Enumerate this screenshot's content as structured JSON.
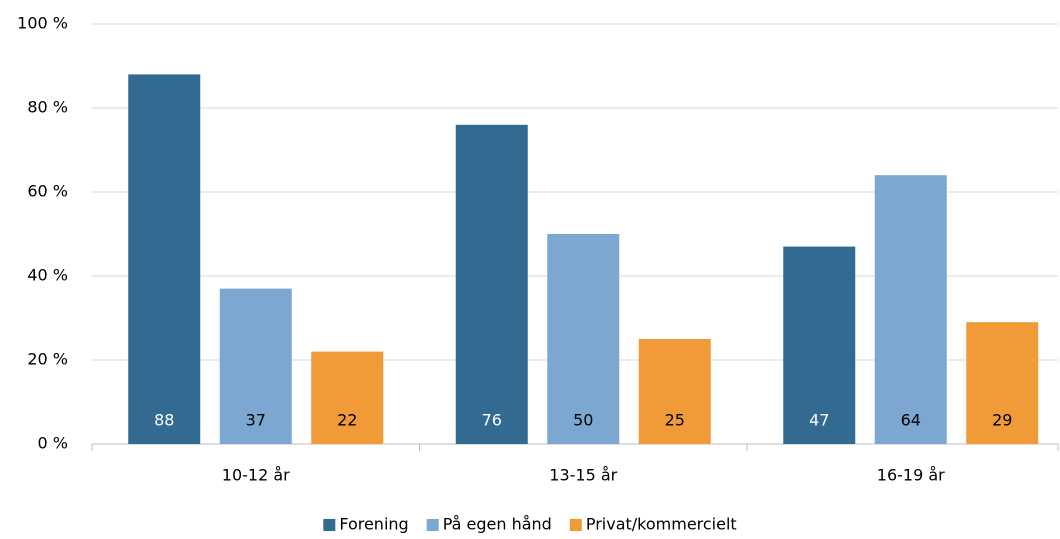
{
  "chart_data": {
    "type": "bar",
    "categories": [
      "10-12 år",
      "13-15 år",
      "16-19 år"
    ],
    "series": [
      {
        "name": "Forening",
        "color": "#336a91",
        "values": [
          88,
          76,
          47
        ]
      },
      {
        "name": "På egen hånd",
        "color": "#7ba7d0",
        "values": [
          37,
          50,
          64
        ]
      },
      {
        "name": "Privat/kommercielt",
        "color": "#f09a38",
        "values": [
          22,
          25,
          29
        ]
      }
    ],
    "ylim": [
      0,
      100
    ],
    "yticks": [
      {
        "value": 0,
        "label": "0 %"
      },
      {
        "value": 20,
        "label": "20 %"
      },
      {
        "value": 40,
        "label": "40 %"
      },
      {
        "value": 60,
        "label": "60 %"
      },
      {
        "value": 80,
        "label": "80 %"
      },
      {
        "value": 100,
        "label": "100 %"
      }
    ],
    "grid": true
  }
}
